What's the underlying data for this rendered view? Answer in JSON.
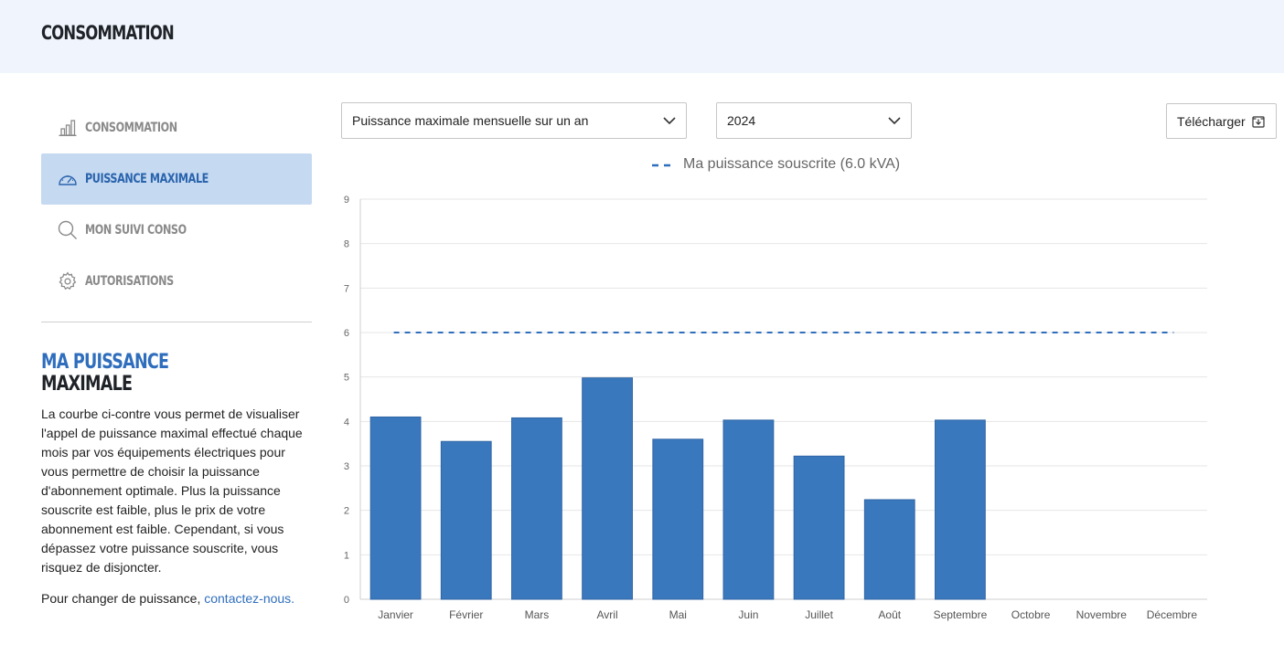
{
  "header": {
    "title": "CONSOMMATION"
  },
  "sidebar": {
    "items": [
      {
        "label": "CONSOMMATION",
        "icon": "bar-chart-icon",
        "active": false
      },
      {
        "label": "PUISSANCE MAXIMALE",
        "icon": "gauge-icon",
        "active": true
      },
      {
        "label": "MON SUIVI CONSO",
        "icon": "search-icon",
        "active": false
      },
      {
        "label": "AUTORISATIONS",
        "icon": "gear-icon",
        "active": false
      }
    ]
  },
  "info": {
    "title_line1": "MA PUISSANCE",
    "title_line2": "MAXIMALE",
    "description": "La courbe ci-contre vous permet de visualiser l'appel de puissance maximal effectué chaque mois par vos équipements électriques pour vous permettre de choisir la puissance d'abonnement optimale. Plus la puissance souscrite est faible, plus le prix de votre abonnement est faible. Cependant, si vous dépassez votre puissance souscrite, vous risquez de disjoncter.",
    "footer_prefix": "Pour changer de puissance, ",
    "footer_link": "contactez-nous."
  },
  "controls": {
    "view_select": "Puissance maximale mensuelle sur un an",
    "year_select": "2024",
    "download_label": "Télécharger"
  },
  "colors": {
    "accent": "#2f6ebd",
    "bar": "#3a78bd",
    "active_bg": "#c5d9f1",
    "header_bg": "#f0f4fc"
  },
  "chart_data": {
    "type": "bar",
    "categories": [
      "Janvier",
      "Février",
      "Mars",
      "Avril",
      "Mai",
      "Juin",
      "Juillet",
      "Août",
      "Septembre",
      "Octobre",
      "Novembre",
      "Décembre"
    ],
    "values": [
      4.1,
      3.55,
      4.08,
      4.98,
      3.6,
      4.03,
      3.22,
      2.24,
      4.03,
      null,
      null,
      null
    ],
    "ylim": [
      0,
      9
    ],
    "yticks": [
      "0",
      "1",
      "2",
      "3",
      "4",
      "5",
      "6",
      "7",
      "8",
      "9"
    ],
    "reference_line": {
      "name": "Ma puissance souscrite (6.0 kVA)",
      "value": 6.0,
      "style": "dashed"
    },
    "grid": true,
    "legend_position": "top-center"
  }
}
